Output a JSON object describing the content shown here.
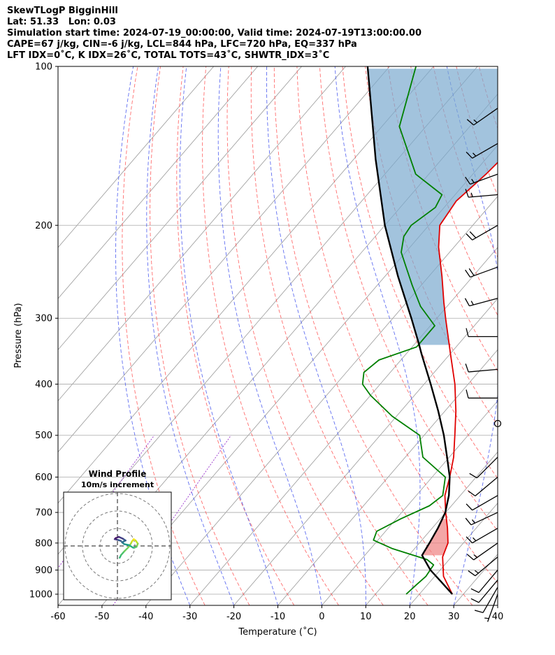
{
  "header": {
    "line1": "SkewTLogP BigginHill",
    "line2": "Lat: 51.33   Lon: 0.03",
    "line3": "Simulation start time: 2024-07-19_00:00:00, Valid time: 2024-07-19T13:00:00.00",
    "line4": "CAPE=67 j/kg, CIN=-6 j/kg, LCL=844 hPa, LFC=720 hPa, EQ=337 hPa",
    "line5": "LFT IDX=0˚C, K IDX=26˚C, TOTAL TOTS=43˚C, SHWTR_IDX=3˚C"
  },
  "chart_data": {
    "type": "skew-t log-p",
    "xlabel": "Temperature (˚C)",
    "ylabel": "Pressure (hPa)",
    "xlim": [
      -60,
      40
    ],
    "ylim": [
      1050,
      100
    ],
    "x_ticks": [
      -60,
      -50,
      -40,
      -30,
      -20,
      -10,
      0,
      10,
      20,
      30,
      40
    ],
    "y_ticks": [
      100,
      200,
      300,
      400,
      500,
      600,
      700,
      800,
      900,
      1000
    ],
    "y_scale": "log",
    "isobar_gridlines": true,
    "colors": {
      "temperature": "#e00000",
      "dewpoint": "#008000",
      "parcel": "#000000",
      "cape_fill": "#7aa9cf",
      "cin_fill": "#f08080",
      "dry_adiabats": "#ff5555",
      "moist_adiabats": "#4455ee",
      "mixing_ratio": "#9933cc",
      "isotherms": "#999999"
    },
    "temperature": {
      "pressure": [
        1000,
        925,
        850,
        800,
        750,
        700,
        650,
        600,
        550,
        500,
        450,
        400,
        350,
        300,
        280,
        250,
        220,
        200,
        180,
        160,
        150,
        140,
        130,
        120,
        110,
        100
      ],
      "value": [
        27.5,
        22,
        18,
        16.5,
        13.5,
        10,
        6.5,
        4,
        1,
        -3,
        -7.5,
        -13,
        -20,
        -28,
        -31.5,
        -37,
        -43.5,
        -47.5,
        -48.5,
        -47,
        -46.5,
        -47.5,
        -49.5,
        -52.5,
        -56,
        -59.5
      ]
    },
    "dewpoint": {
      "pressure": [
        1000,
        960,
        925,
        880,
        860,
        820,
        790,
        760,
        720,
        680,
        650,
        600,
        550,
        500,
        460,
        420,
        400,
        380,
        360,
        340,
        310,
        285,
        260,
        240,
        225,
        210,
        200,
        185,
        175,
        160,
        130,
        100
      ],
      "value": [
        17,
        17.5,
        18,
        17.5,
        15,
        5,
        -1,
        -2,
        1,
        5,
        6,
        3,
        -6,
        -11,
        -21,
        -30,
        -34,
        -36,
        -35,
        -29,
        -29,
        -36,
        -42,
        -47,
        -51,
        -53.5,
        -54,
        -52,
        -53,
        -63,
        -76,
        -84
      ]
    },
    "parcel": {
      "pressure": [
        1000,
        950,
        900,
        844,
        800,
        750,
        720,
        700,
        650,
        600,
        550,
        500,
        450,
        400,
        350,
        337,
        300,
        250,
        200,
        150,
        100
      ],
      "value": [
        27.5,
        22.8,
        17.8,
        13,
        12.3,
        11.3,
        10.5,
        9.9,
        7.4,
        4,
        -0.5,
        -5.5,
        -11.5,
        -18.5,
        -26.6,
        -28.8,
        -35.8,
        -47,
        -60,
        -75,
        -95
      ]
    },
    "wind_barbs": {
      "pressure": [
        1000,
        970,
        940,
        900,
        850,
        800,
        750,
        700,
        650,
        600,
        550,
        475,
        425,
        375,
        325,
        275,
        240,
        200,
        175,
        160,
        140,
        120
      ],
      "speed_kt": [
        5,
        10,
        10,
        10,
        15,
        15,
        15,
        15,
        10,
        10,
        10,
        0,
        10,
        10,
        10,
        15,
        20,
        20,
        15,
        15,
        15,
        15
      ],
      "direction_deg": [
        200,
        210,
        220,
        220,
        230,
        235,
        240,
        245,
        240,
        230,
        225,
        0,
        270,
        265,
        270,
        255,
        250,
        240,
        265,
        250,
        240,
        235
      ]
    },
    "wind_profile": {
      "title": "Wind Profile",
      "subtitle": "10m/s increment",
      "u": [
        0.5,
        0.8,
        1.5,
        2.5,
        3.0,
        3.2,
        3.6,
        4.0,
        4.5,
        4.2,
        3.5,
        2.5,
        1.5,
        1.0,
        1.8,
        1.2,
        0.3,
        -0.4,
        -0.6,
        0.2,
        0.8
      ],
      "v": [
        -2.6,
        -2.0,
        -1.2,
        -0.2,
        0.6,
        1.0,
        1.5,
        1.2,
        0.5,
        -0.2,
        -0.4,
        0.2,
        0.4,
        0.8,
        1.2,
        1.6,
        2.0,
        1.7,
        1.5,
        1.3,
        1.1
      ]
    }
  }
}
